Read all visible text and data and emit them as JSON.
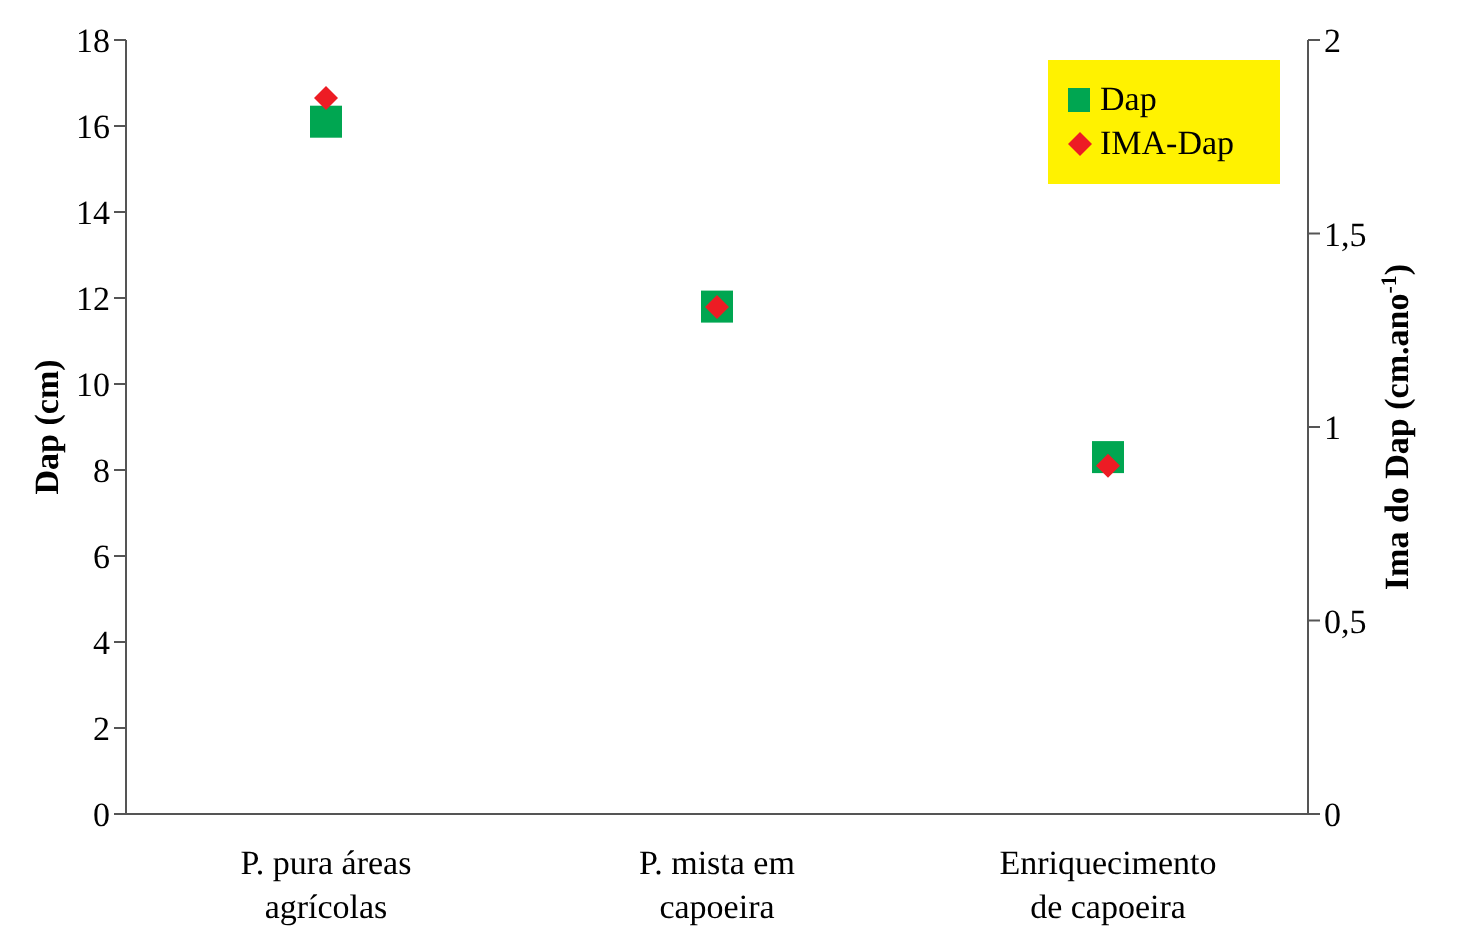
{
  "chart_data": {
    "type": "scatter",
    "categories": [
      "P. pura áreas agrícolas",
      "P. mista em capoeira",
      "Enriquecimento de capoeira"
    ],
    "series": [
      {
        "name": "Dap",
        "color": "#00a651",
        "marker": "square",
        "values": [
          16.1,
          11.8,
          8.3
        ]
      },
      {
        "name": "IMA-Dap",
        "color": "#ed1c24",
        "marker": "diamond",
        "axis": "y2",
        "values": [
          1.85,
          1.31,
          0.9
        ]
      }
    ],
    "ylabel": "Dap (cm)",
    "y2label": "Ima do Dap (cm.ano$^{-1}$)",
    "ylim": [
      0,
      18
    ],
    "yticks": [
      0,
      2,
      4,
      6,
      8,
      10,
      12,
      14,
      16,
      18
    ],
    "y2lim": [
      0,
      2
    ],
    "y2ticks": [
      0,
      {
        "value": 0.5,
        "label": "0,5"
      },
      1,
      {
        "value": 1.5,
        "label": "1,5"
      },
      2
    ],
    "grid": false,
    "legend": "top right"
  }
}
